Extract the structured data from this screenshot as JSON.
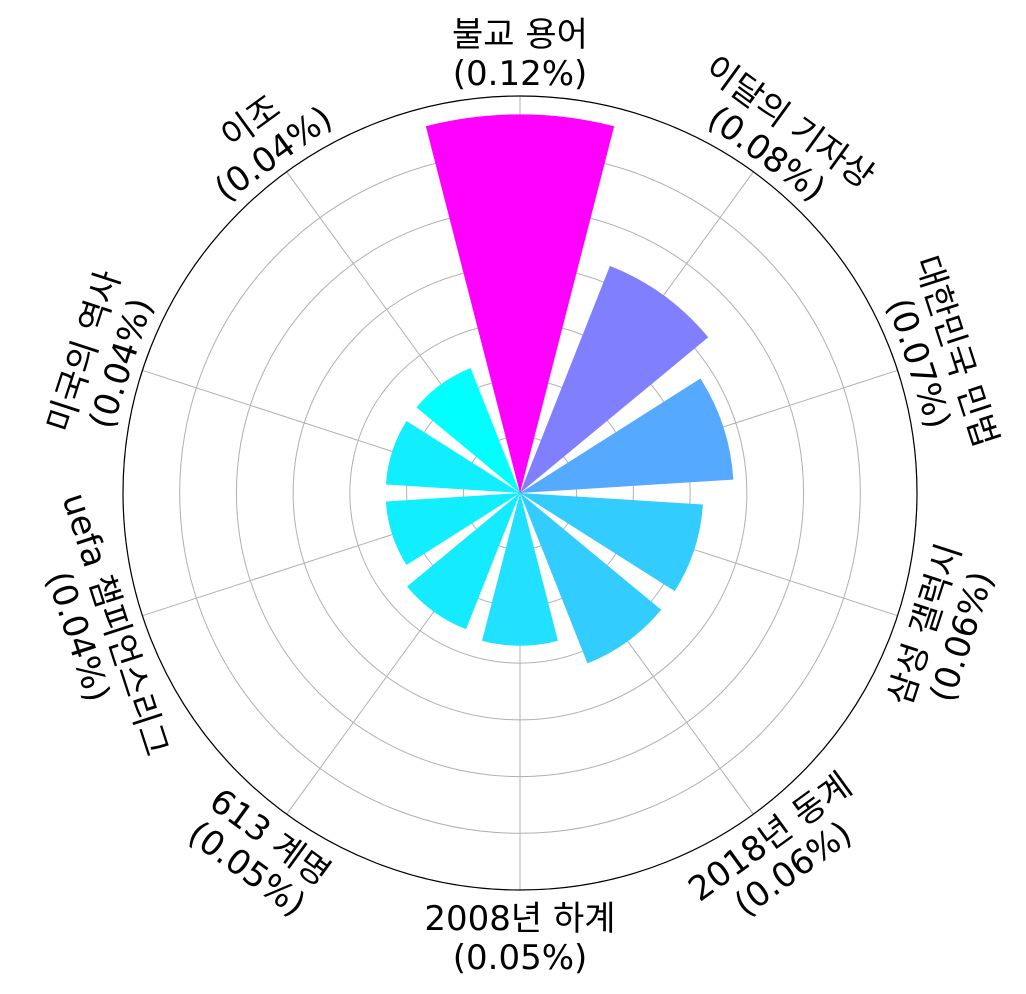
{
  "chart_data": {
    "type": "polar-bar",
    "title": "",
    "grid": true,
    "rlim": [
      0,
      0.13
    ],
    "categories": [
      "불교 용어",
      "이달의 기자상",
      "대한민국 민법",
      "삼성 갤럭시",
      "2018년 동계",
      "2008년 하계",
      "613 계명",
      "uefa 챔피언스리그",
      "미국의 역사",
      "이조"
    ],
    "percent_labels": [
      "(0.12%)",
      "(0.08%)",
      "(0.07%)",
      "(0.06%)",
      "(0.06%)",
      "(0.05%)",
      "(0.05%)",
      "(0.04%)",
      "(0.04%)",
      "(0.04%)"
    ],
    "values": [
      0.124,
      0.08,
      0.07,
      0.06,
      0.06,
      0.05,
      0.048,
      0.044,
      0.044,
      0.044
    ],
    "colors": [
      "#ff00ff",
      "#8080ff",
      "#55aaff",
      "#33ccff",
      "#33ccff",
      "#22e0ff",
      "#14ebff",
      "#11eeff",
      "#11eeff",
      "#00ffff"
    ]
  }
}
